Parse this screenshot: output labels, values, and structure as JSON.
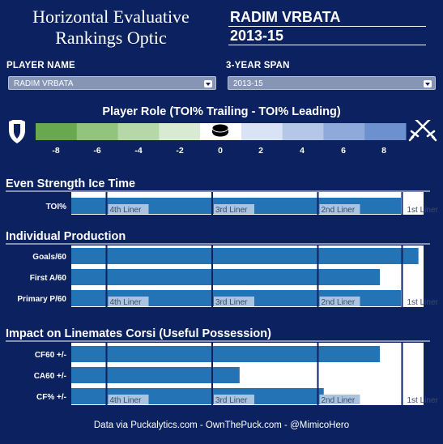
{
  "header": {
    "title_line1": "Horizontal Evaluative",
    "title_line2": "Rankings Optic",
    "player_display": "RADIM VRBATA",
    "span_display": "2013-15"
  },
  "controls": {
    "player_label": "PLAYER NAME",
    "player_value": "RADIM VRBATA",
    "span_label": "3-YEAR SPAN",
    "span_value": "2013-15"
  },
  "role": {
    "title": "Player Role (TOI% Trailing - TOI% Leading)",
    "ticks": [
      "-8",
      "-6",
      "-4",
      "-2",
      "0",
      "2",
      "4",
      "6",
      "8"
    ],
    "colors": [
      "#6aa84f",
      "#93c47d",
      "#b6d7a8",
      "#d9ead3",
      "#ffffff",
      "#dae3f5",
      "#b4c7e7",
      "#8eaadb",
      "#6d91cf"
    ],
    "marker": "puck-icon",
    "left_icon": "shield-icon",
    "right_icon": "crossed-swords-icon"
  },
  "footer": "Data via Puckalytics.com - OwnThePuck.com - @MimicoHero",
  "chart_data": [
    {
      "type": "bar",
      "title": "Even Strength Ice Time",
      "categories": [
        "TOI%"
      ],
      "values": [
        0.94
      ],
      "tiers": [
        "4th Liner",
        "3rd Liner",
        "2nd Liner",
        "1st Liner"
      ],
      "tier_boundaries": [
        0.1,
        0.4,
        0.7,
        1.0
      ],
      "bar_color": "#2473b5"
    },
    {
      "type": "bar",
      "title": "Individual Production",
      "categories": [
        "Goals/60",
        "First A/60",
        "Primary P/60"
      ],
      "values": [
        0.99,
        0.88,
        0.94
      ],
      "tiers": [
        "4th Liner",
        "3rd Liner",
        "2nd Liner",
        "1st Liner"
      ],
      "tier_boundaries": [
        0.1,
        0.4,
        0.7,
        1.0
      ],
      "bar_color": "#2473b5"
    },
    {
      "type": "bar",
      "title": "Impact on Linemates Corsi (Useful Possession)",
      "categories": [
        "CF60 +/-",
        "CA60 +/-",
        "CF% +/-"
      ],
      "values": [
        0.88,
        0.48,
        0.72
      ],
      "tiers": [
        "4th Liner",
        "3rd Liner",
        "2nd Liner",
        "1st Liner"
      ],
      "tier_boundaries": [
        0.1,
        0.4,
        0.7,
        1.0
      ],
      "bar_color": "#2473b5"
    }
  ]
}
